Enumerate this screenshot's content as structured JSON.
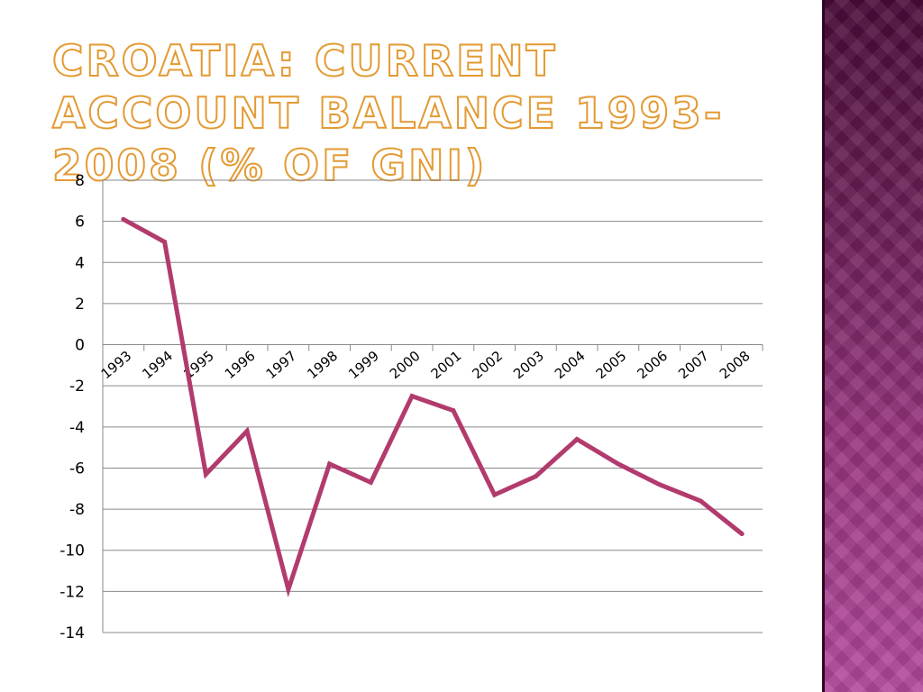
{
  "slide": {
    "title": "Croatia: current account balance 1993-2008 (% of GNI)"
  },
  "chart_data": {
    "type": "line",
    "title": "",
    "xlabel": "",
    "ylabel": "",
    "categories": [
      "1993",
      "1994",
      "1995",
      "1996",
      "1997",
      "1998",
      "1999",
      "2000",
      "2001",
      "2002",
      "2003",
      "2004",
      "2005",
      "2006",
      "2007",
      "2008"
    ],
    "series": [
      {
        "values": [
          6.1,
          5.0,
          -6.3,
          -4.2,
          -11.9,
          -5.8,
          -6.7,
          -2.5,
          -3.2,
          -7.3,
          -6.4,
          -4.6,
          -5.8,
          -6.8,
          -7.6,
          -9.2
        ],
        "color": "#b23b6e"
      }
    ],
    "ylim": [
      -14,
      8
    ],
    "yticks": [
      8,
      6,
      4,
      2,
      0,
      -2,
      -4,
      -6,
      -8,
      -10,
      -12,
      -14
    ],
    "grid": true,
    "legend": "none",
    "colors": {
      "grid": "#8a8a8a",
      "line": "#b23b6e",
      "title_fill": "#ffffff",
      "title_stroke": "#e39a33"
    }
  }
}
